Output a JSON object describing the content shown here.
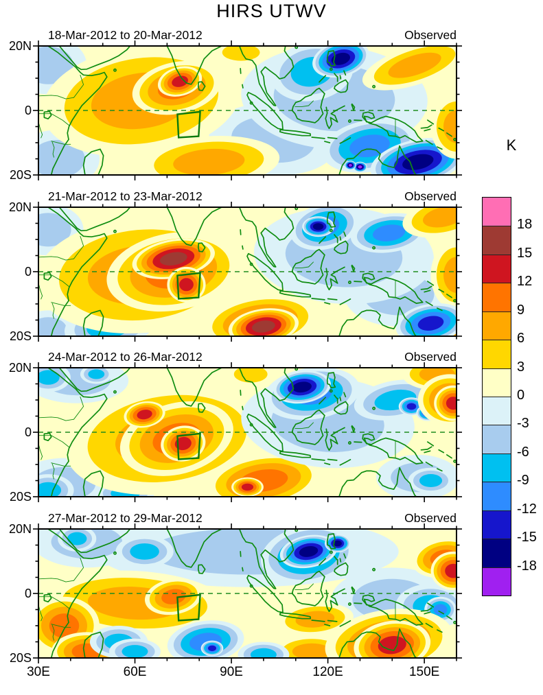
{
  "title": "HIRS UTWV",
  "chart_data": {
    "type": "heatmap",
    "title": "HIRS UTWV",
    "subtitle": "",
    "unit": "K",
    "x_axis": {
      "tick_labels": [
        "30E",
        "60E",
        "90E",
        "120E",
        "150E"
      ],
      "tick_lons": [
        30,
        60,
        90,
        120,
        150
      ],
      "minor_step_deg": 10,
      "range_lon": [
        30,
        160
      ]
    },
    "y_axis": {
      "tick_labels": [
        "20N",
        "0",
        "20S"
      ],
      "tick_lats": [
        20,
        0,
        -20
      ],
      "minor_step_deg": 5,
      "range_lat": [
        -20,
        20
      ]
    },
    "colorbar": {
      "unit": "K",
      "tick_labels": [
        "18",
        "15",
        "12",
        "9",
        "6",
        "3",
        "0",
        "-3",
        "-6",
        "-9",
        "-12",
        "-15",
        "-18"
      ],
      "cell_colors_top_to_bottom": [
        "#FF6EB4",
        "#9E3A33",
        "#CF1520",
        "#FF7400",
        "#FFA800",
        "#FFD700",
        "#FFFFC6",
        "#DCF2F8",
        "#A8CCEE",
        "#00C0F0",
        "#2E8CFF",
        "#1616CC",
        "#000082",
        "#A020F0"
      ]
    },
    "palette": {
      "base": "#FFFFC6",
      "warm_bands": [
        "#FFFFC6",
        "#FFD700",
        "#FFA800",
        "#FF7400",
        "#CF1520",
        "#9E3A33",
        "#FF6EB4"
      ],
      "cool_bands": [
        "#DCF2F8",
        "#A8CCEE",
        "#00C0F0",
        "#2E8CFF",
        "#1616CC",
        "#000082",
        "#A020F0"
      ]
    },
    "map_overlay": {
      "coast_color": "#0E8C10",
      "equator_line": "dashed",
      "study_box_lonlat": [
        [
          73.2,
          -1.2
        ],
        [
          80.3,
          -0.4
        ],
        [
          79.8,
          -8.0
        ],
        [
          73.6,
          -8.4
        ]
      ]
    },
    "panels": [
      {
        "date_range": "18-Mar-2012 to 20-Mar-2012",
        "source_label": "Observed",
        "anomaly_centers": [
          [
            33,
            14,
            12,
            9,
            -4,
            0
          ],
          [
            36,
            -15,
            13,
            9,
            -5,
            0
          ],
          [
            103,
            -9,
            20,
            11,
            -4,
            5
          ],
          [
            62,
            3,
            31,
            17,
            8,
            -8
          ],
          [
            83,
            -16,
            22,
            8,
            8,
            -4
          ],
          [
            93,
            18,
            9,
            4,
            4,
            0
          ],
          [
            73,
            7,
            14,
            8,
            10,
            -12
          ],
          [
            74,
            9,
            7,
            4.5,
            13,
            -15
          ],
          [
            122,
            4,
            29,
            16,
            -5,
            3
          ],
          [
            115,
            12,
            13,
            9,
            -8,
            -10
          ],
          [
            124,
            16,
            9,
            5.5,
            -17,
            -15
          ],
          [
            133,
            -11,
            15,
            8,
            -10,
            -10
          ],
          [
            148,
            -16,
            15,
            7,
            -17,
            -12
          ],
          [
            130,
            -17.5,
            2.2,
            1.6,
            -18.5,
            0
          ],
          [
            127,
            -17,
            1.8,
            1.4,
            -18.5,
            0
          ],
          [
            147,
            14,
            17,
            6,
            8,
            -18
          ],
          [
            160,
            -5,
            8,
            10,
            7,
            0
          ]
        ]
      },
      {
        "date_range": "21-Mar-2012 to 23-Mar-2012",
        "source_label": "Observed",
        "anomaly_centers": [
          [
            33,
            13,
            11,
            8,
            -4,
            0
          ],
          [
            33,
            -18,
            9,
            6,
            -5,
            0
          ],
          [
            52,
            -17,
            14,
            7,
            -7,
            -8
          ],
          [
            62,
            -1,
            33,
            18,
            8,
            -5
          ],
          [
            142,
            -7,
            17,
            10,
            -4,
            0
          ],
          [
            125,
            5,
            28,
            15,
            -5,
            3
          ],
          [
            99,
            -15.5,
            18,
            8,
            11,
            -8
          ],
          [
            100,
            -17,
            11,
            5.5,
            17,
            -8
          ],
          [
            72,
            0,
            21,
            12,
            11,
            -10
          ],
          [
            72,
            4,
            13,
            6,
            16,
            -10
          ],
          [
            76,
            -4,
            6,
            5.5,
            14,
            0
          ],
          [
            119,
            14,
            11,
            7,
            -10,
            -15
          ],
          [
            117,
            14,
            5,
            3.2,
            -16,
            0
          ],
          [
            139,
            12,
            12,
            6,
            -10,
            -8
          ],
          [
            156,
            17,
            13,
            6,
            8,
            -12
          ],
          [
            160,
            -1,
            8,
            11,
            8,
            0
          ],
          [
            160,
            -19,
            6,
            5,
            7,
            0
          ],
          [
            152,
            -16,
            11,
            6,
            -14,
            -10
          ]
        ]
      },
      {
        "date_range": "24-Mar-2012 to 26-Mar-2012",
        "source_label": "Observed",
        "anomaly_centers": [
          [
            42,
            16,
            16,
            7,
            -4,
            0
          ],
          [
            33,
            17,
            7,
            4.5,
            -8,
            0
          ],
          [
            48,
            18,
            5,
            3,
            -7,
            0
          ],
          [
            38,
            -16,
            15,
            8,
            -5,
            0
          ],
          [
            33,
            -18,
            8,
            5,
            -8,
            0
          ],
          [
            57,
            -19,
            9,
            4,
            -7,
            0
          ],
          [
            70,
            -2,
            32,
            17,
            8,
            -8
          ],
          [
            96,
            18,
            8,
            4,
            5,
            0
          ],
          [
            100,
            -15,
            18,
            8,
            9,
            -8
          ],
          [
            95,
            -17,
            5,
            3,
            13,
            0
          ],
          [
            73,
            -2,
            18,
            11,
            11,
            -15
          ],
          [
            75,
            -3.5,
            7,
            5.5,
            14,
            -10
          ],
          [
            63,
            5.5,
            6.5,
            4,
            13,
            -10
          ],
          [
            120,
            3,
            27,
            14,
            -5,
            4
          ],
          [
            115,
            12,
            15,
            8,
            -9,
            -8
          ],
          [
            112,
            14,
            9,
            5,
            -17,
            -8
          ],
          [
            141,
            10,
            13,
            6,
            -8,
            -10
          ],
          [
            146,
            8,
            4,
            2.8,
            -14,
            0
          ],
          [
            151,
            6,
            3.5,
            2.5,
            -13,
            0
          ],
          [
            148,
            -14,
            13,
            7,
            -4,
            0
          ],
          [
            152,
            -15,
            7,
            4,
            -6,
            0
          ],
          [
            154,
            18,
            11,
            5,
            8,
            0
          ],
          [
            158,
            10,
            10,
            8,
            10,
            0
          ],
          [
            159,
            9,
            6,
            5.5,
            13,
            0
          ]
        ]
      },
      {
        "date_range": "27-Mar-2012 to 29-Mar-2012",
        "source_label": "Observed",
        "anomaly_centers": [
          [
            95,
            13,
            47,
            11,
            -4,
            0
          ],
          [
            45,
            16,
            17,
            8,
            -5,
            0
          ],
          [
            42,
            17,
            6,
            4,
            -7,
            0
          ],
          [
            63,
            13,
            9,
            5,
            -6,
            0
          ],
          [
            140,
            -2,
            19,
            10,
            -4,
            0
          ],
          [
            60,
            -3,
            29,
            10,
            7,
            3
          ],
          [
            38,
            -10,
            11,
            9,
            10,
            0
          ],
          [
            45,
            -18,
            11,
            6,
            9,
            0
          ],
          [
            115,
            -18,
            12,
            5,
            6,
            0
          ],
          [
            116,
            -8,
            12,
            5,
            6,
            -5
          ],
          [
            72,
            -1,
            9,
            5.5,
            11,
            -10
          ],
          [
            55,
            -15,
            9,
            5,
            -7,
            0
          ],
          [
            60,
            -18,
            8,
            4,
            -6,
            0
          ],
          [
            82,
            -15,
            12,
            6.5,
            -10,
            -8
          ],
          [
            84,
            -17,
            3.5,
            2.4,
            -14,
            0
          ],
          [
            100,
            -19,
            8,
            4,
            -6,
            0
          ],
          [
            114,
            12,
            15,
            9,
            -10,
            -10
          ],
          [
            114,
            13,
            9,
            5,
            -16,
            -10
          ],
          [
            123,
            15.5,
            4,
            2.8,
            -15,
            0
          ],
          [
            152,
            -4,
            11,
            7,
            -8,
            0
          ],
          [
            155,
            -5,
            5,
            4,
            -10,
            0
          ],
          [
            139,
            -15,
            20,
            10,
            11,
            -8
          ],
          [
            140,
            -16,
            12,
            7.5,
            14,
            -8
          ],
          [
            156,
            11,
            10,
            6,
            11,
            -10
          ],
          [
            159,
            7,
            7,
            6,
            12,
            0
          ]
        ]
      }
    ]
  }
}
